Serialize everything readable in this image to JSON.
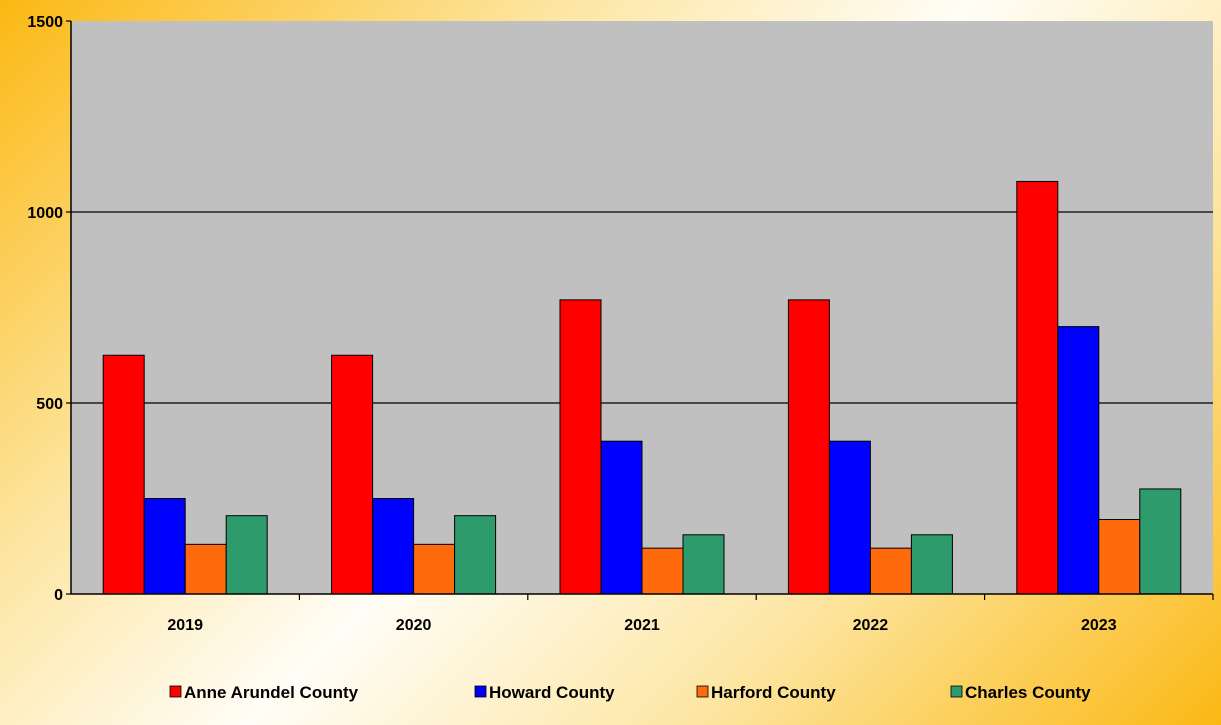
{
  "chart_data": {
    "type": "bar",
    "title": "",
    "xlabel": "",
    "ylabel": "",
    "categories": [
      "2019",
      "2020",
      "2021",
      "2022",
      "2023"
    ],
    "series": [
      {
        "name": "Anne Arundel County",
        "values": [
          625,
          625,
          770,
          770,
          1080
        ],
        "color": "#ff0000"
      },
      {
        "name": "Howard County",
        "values": [
          250,
          250,
          400,
          400,
          700
        ],
        "color": "#0000ff"
      },
      {
        "name": "Harford County",
        "values": [
          130,
          130,
          120,
          120,
          195
        ],
        "color": "#ff6a0d"
      },
      {
        "name": "Charles County",
        "values": [
          205,
          205,
          155,
          155,
          275
        ],
        "color": "#2d9b6c"
      }
    ],
    "ylim": [
      0,
      1500
    ],
    "yticks": [
      0,
      500,
      1000,
      1500
    ],
    "grid": true,
    "legend_position": "bottom",
    "plot_background": "#c0c0c0"
  }
}
